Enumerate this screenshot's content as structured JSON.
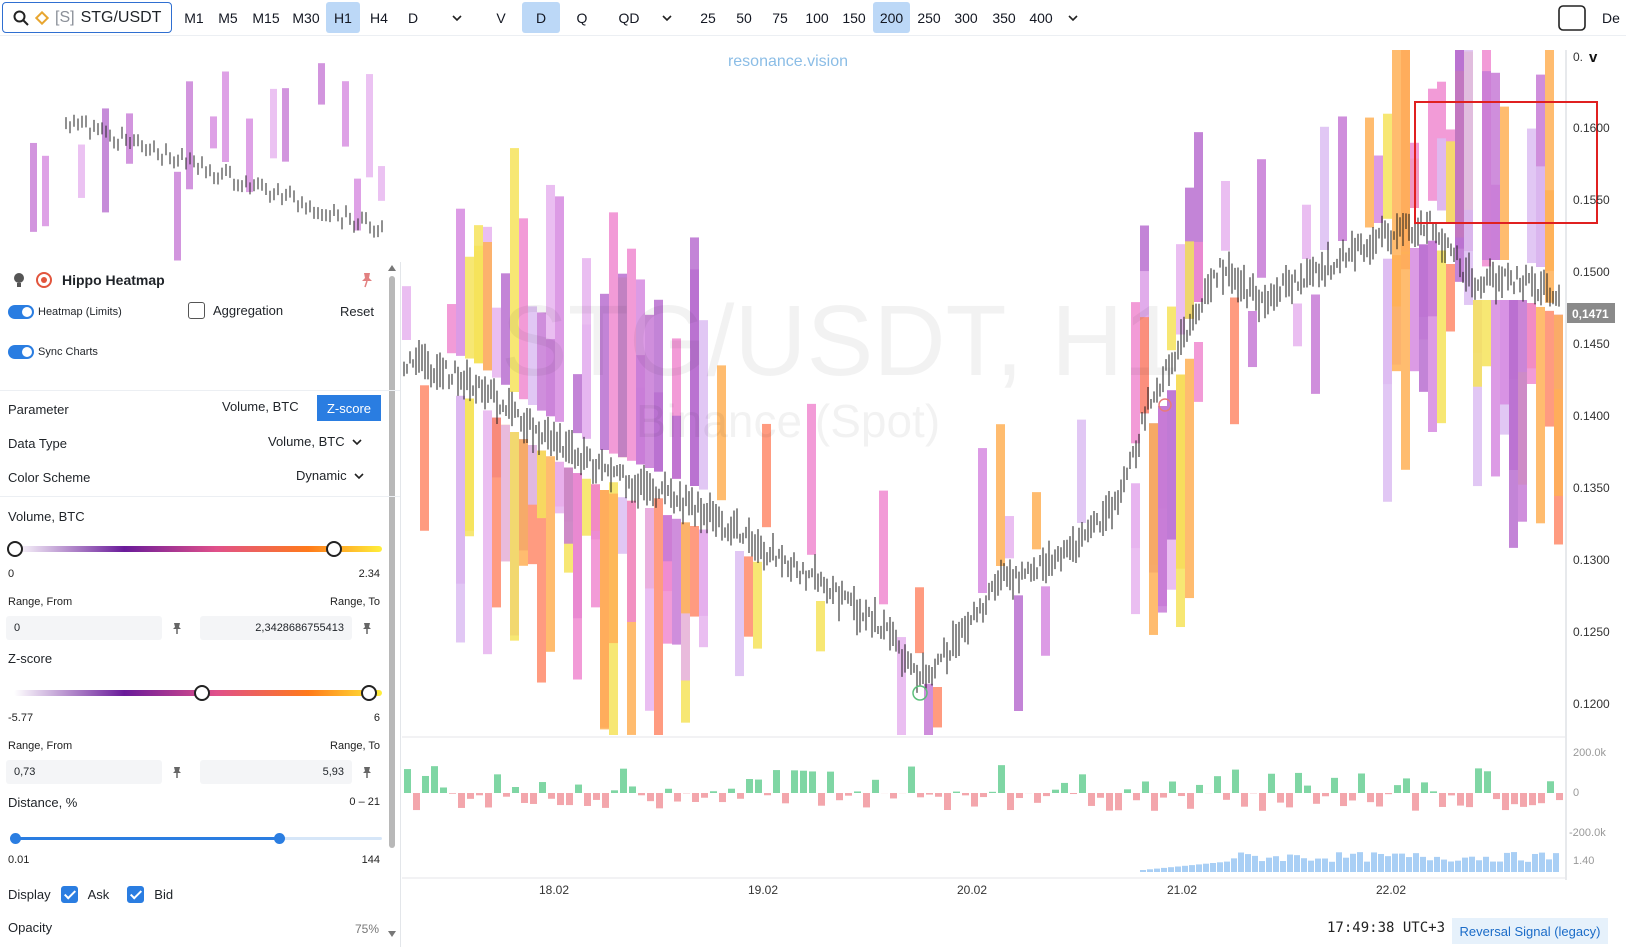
{
  "toolbar": {
    "symbol_prefix": "[S]",
    "symbol": "STG/USDT",
    "timeframes": [
      "M1",
      "M5",
      "M15",
      "M30",
      "H1",
      "H4",
      "D"
    ],
    "active_timeframe": "H1",
    "view_modes": [
      "V",
      "D",
      "Q",
      "QD"
    ],
    "active_view_mode": "D",
    "depths": [
      "25",
      "50",
      "75",
      "100",
      "150",
      "200",
      "250",
      "300",
      "350",
      "400"
    ],
    "active_depth": "200",
    "right_label": "De"
  },
  "chart": {
    "watermark_brand": "resonance.vision",
    "watermark_title": "STG/USDT, H1",
    "watermark_subtitle": "Binance (Spot)",
    "price_axis": [
      "0.1600",
      "0.1550",
      "0.1500",
      "0.1450",
      "0.1400",
      "0.1350",
      "0.1300",
      "0.1250",
      "0.1200"
    ],
    "price_axis_top": "0.",
    "current_price": "0,1471",
    "delta_axis": [
      "200.0k",
      "0",
      "-200.0k"
    ],
    "volume_axis_label": "1.40",
    "date_axis": [
      "18.02",
      "19.02",
      "20.02",
      "21.02",
      "22.02"
    ],
    "colors": {
      "highlight_box": "#e02020",
      "price_badge": "#8a8a8a"
    }
  },
  "panel": {
    "title": "Hippo Heatmap",
    "heatmap_toggle_label": "Heatmap (Limits)",
    "aggregation_label": "Aggregation",
    "reset_label": "Reset",
    "sync_label": "Sync Charts",
    "parameter_label": "Parameter",
    "parameter_options": [
      "Volume, BTC",
      "Z-score"
    ],
    "parameter_selected": "Z-score",
    "data_type_label": "Data Type",
    "data_type_value": "Volume, BTC",
    "color_scheme_label": "Color Scheme",
    "color_scheme_value": "Dynamic",
    "volume_label": "Volume, BTC",
    "volume_min": "0",
    "volume_max": "2.34",
    "volume_range_from_label": "Range, From",
    "volume_range_to_label": "Range, To",
    "volume_from_value": "0",
    "volume_to_value": "2,3428686755413",
    "volume_slider_level": 0.87,
    "zscore_label": "Z-score",
    "zscore_min": "-5.77",
    "zscore_max": "6",
    "zscore_range_from_label": "Range, From",
    "zscore_range_to_label": "Range, To",
    "zscore_from_value": "0,73",
    "zscore_to_value": "5,93",
    "zscore_slider_low": 0.51,
    "distance_label": "Distance, %",
    "distance_range": "0 – 21",
    "distance_min": "0.01",
    "distance_max": "144",
    "distance_slider_level": 0.72,
    "display_label": "Display",
    "ask_label": "Ask",
    "bid_label": "Bid",
    "opacity_label": "Opacity",
    "opacity_value": "75%"
  },
  "status": {
    "time": "17:49:38 UTC+3",
    "signal_button": "Reversal Signal (legacy)"
  }
}
